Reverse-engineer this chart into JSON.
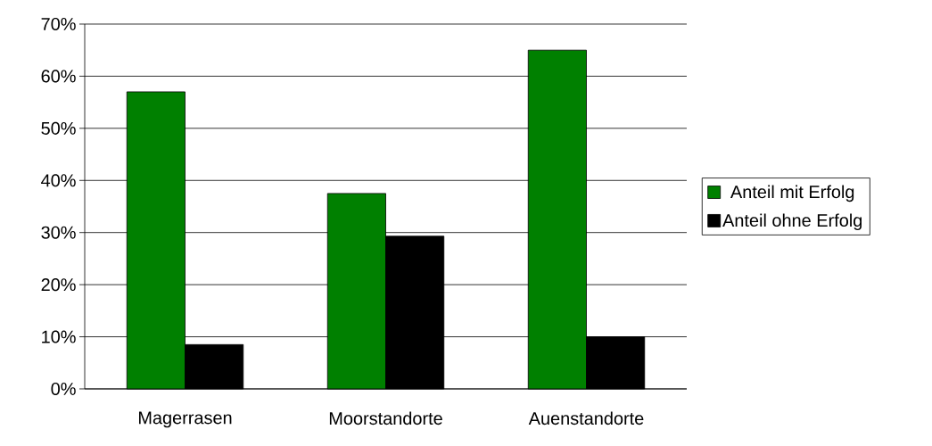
{
  "chart_data": {
    "type": "bar",
    "categories": [
      "Magerrasen",
      "Moorstandorte",
      "Auenstandorte"
    ],
    "series": [
      {
        "name": "Anteil mit Erfolg",
        "color": "#008000",
        "values": [
          57,
          37.5,
          65
        ]
      },
      {
        "name": "Anteil ohne Erfolg",
        "color": "#000000",
        "values": [
          8.5,
          29.3,
          10
        ]
      }
    ],
    "ylim": [
      0,
      70
    ],
    "yticks": [
      {
        "value": 0,
        "label": "0%"
      },
      {
        "value": 10,
        "label": "10%"
      },
      {
        "value": 20,
        "label": "20%"
      },
      {
        "value": 30,
        "label": "30%"
      },
      {
        "value": 40,
        "label": "40%"
      },
      {
        "value": 50,
        "label": "50%"
      },
      {
        "value": 60,
        "label": "60%"
      },
      {
        "value": 70,
        "label": "70%"
      }
    ],
    "grid": "y",
    "legend": "right"
  }
}
